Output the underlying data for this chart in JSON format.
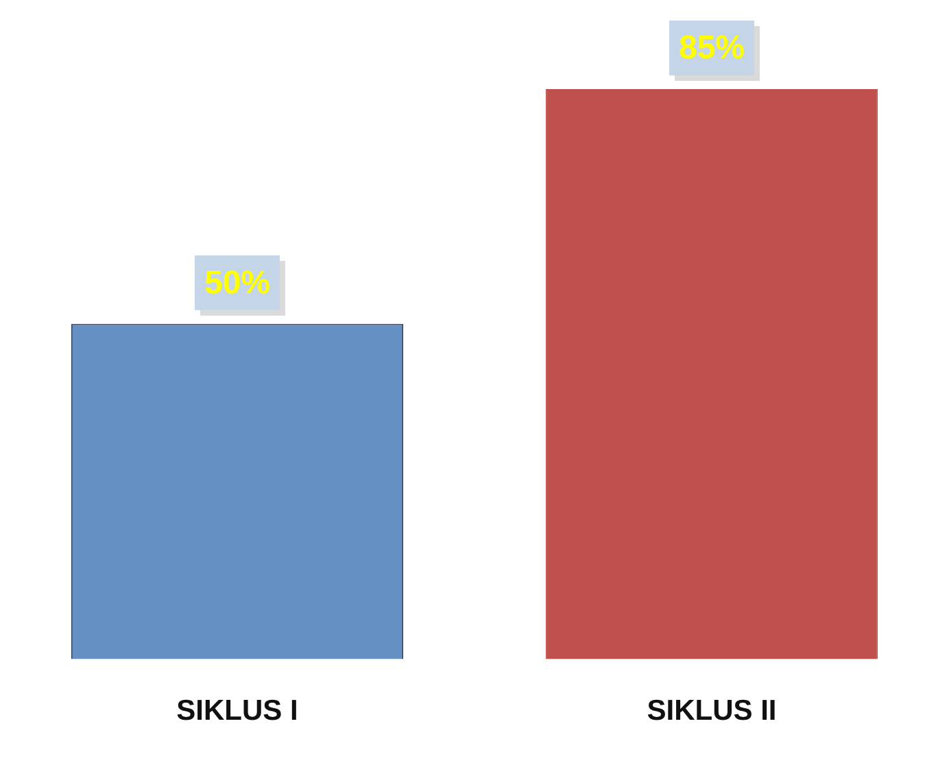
{
  "chart_data": {
    "type": "bar",
    "categories": [
      "SIKLUS I",
      "SIKLUS II"
    ],
    "values": [
      50,
      85
    ],
    "colors": [
      "#6590c4",
      "#c0504d"
    ],
    "value_labels": [
      "50%",
      "85%"
    ],
    "ylim": [
      0,
      85
    ],
    "grid": false,
    "legend": false
  }
}
